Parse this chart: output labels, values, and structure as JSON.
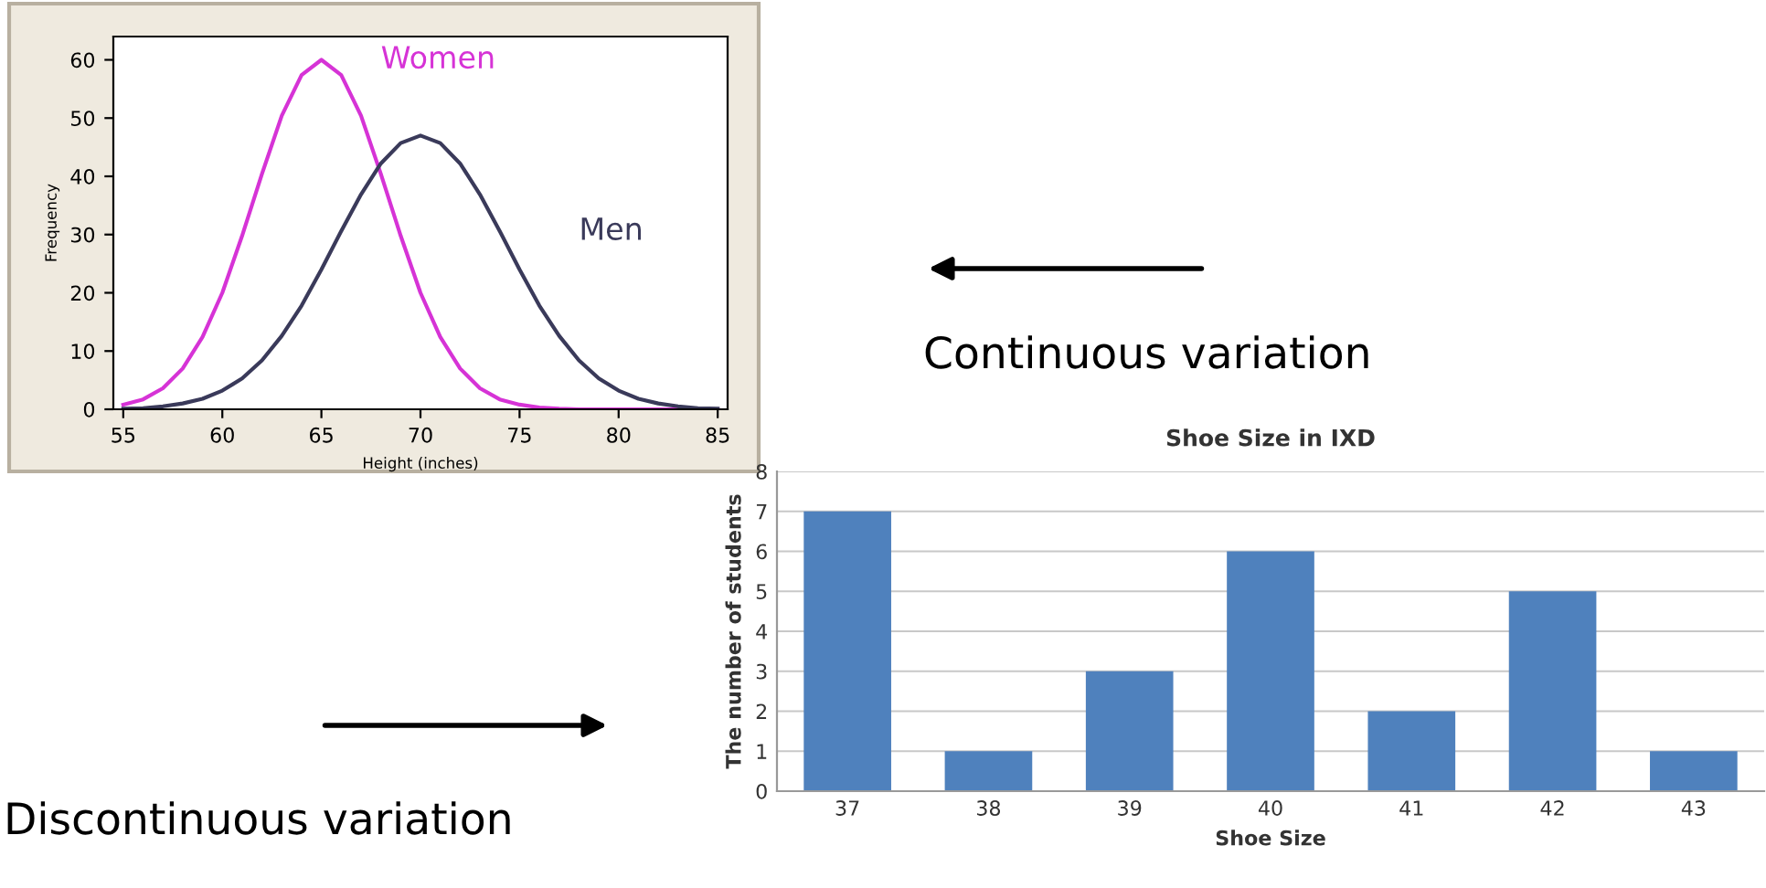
{
  "chart_data": [
    {
      "type": "line",
      "xlabel": "Height (inches)",
      "ylabel": "Frequency",
      "x": [
        55,
        56,
        57,
        58,
        59,
        60,
        61,
        62,
        63,
        64,
        65,
        66,
        67,
        68,
        69,
        70,
        71,
        72,
        73,
        74,
        75,
        76,
        77,
        78,
        79,
        80,
        81,
        82,
        83,
        84,
        85
      ],
      "series": [
        {
          "name": "Women",
          "color": "#d633d6",
          "values": [
            0.8,
            1.7,
            3.6,
            7.0,
            12.4,
            20,
            29.8,
            40.4,
            50.4,
            57.4,
            60,
            57.4,
            50.4,
            40.4,
            29.8,
            20,
            12.4,
            7.0,
            3.6,
            1.7,
            0.8,
            0.3,
            0.1,
            0,
            0,
            0,
            0,
            0,
            0,
            0,
            0
          ]
        },
        {
          "name": "Men",
          "color": "#3a3a5a",
          "values": [
            0.1,
            0.2,
            0.5,
            1.0,
            1.8,
            3.2,
            5.3,
            8.4,
            12.6,
            17.8,
            24,
            30.6,
            36.9,
            42.2,
            45.7,
            47,
            45.7,
            42.2,
            36.9,
            30.6,
            24,
            17.8,
            12.6,
            8.4,
            5.3,
            3.2,
            1.8,
            1.0,
            0.5,
            0.2,
            0.1
          ]
        }
      ],
      "xlim": [
        54.5,
        85.5
      ],
      "ylim": [
        0,
        64
      ],
      "xticks": [
        55,
        60,
        65,
        70,
        75,
        80,
        85
      ],
      "yticks": [
        0,
        10,
        20,
        30,
        40,
        50,
        60
      ],
      "grid": false,
      "legend": false,
      "annotations": [
        "Continuous variation"
      ]
    },
    {
      "type": "bar",
      "title": "Shoe Size in IXD",
      "xlabel": "Shoe Size",
      "ylabel": "The number of students",
      "categories": [
        "37",
        "38",
        "39",
        "40",
        "41",
        "42",
        "43"
      ],
      "values": [
        7,
        1,
        3,
        6,
        2,
        5,
        1
      ],
      "color": "#4f81bd",
      "ylim": [
        0,
        8
      ],
      "yticks": [
        0,
        1,
        2,
        3,
        4,
        5,
        6,
        7,
        8
      ],
      "grid": "y",
      "legend": false,
      "annotations": [
        "Discontinuous variation"
      ]
    }
  ]
}
